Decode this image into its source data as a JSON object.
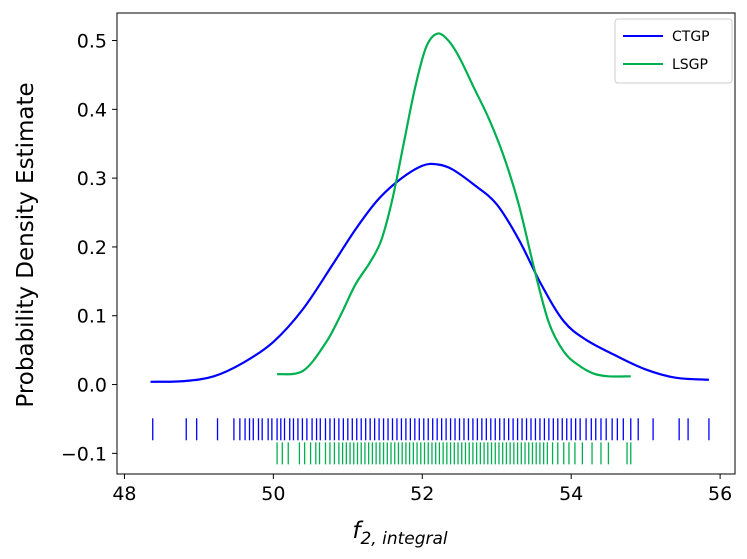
{
  "chart_data": {
    "type": "line",
    "title": "",
    "xlabel": "f",
    "xlabel_sub": "2, integral",
    "ylabel": "Probability Density Estimate",
    "xlim": [
      47.9,
      56.2
    ],
    "ylim": [
      -0.13,
      0.54
    ],
    "xticks": [
      48,
      50,
      52,
      54,
      56
    ],
    "xtick_labels": [
      "48",
      "50",
      "52",
      "54",
      "56"
    ],
    "yticks": [
      -0.1,
      0.0,
      0.1,
      0.2,
      0.3,
      0.4,
      0.5
    ],
    "ytick_labels": [
      "−0.1",
      "0.0",
      "0.1",
      "0.2",
      "0.3",
      "0.4",
      "0.5"
    ],
    "grid": false,
    "legend_position": "top-right",
    "series": [
      {
        "name": "CTGP",
        "color": "#0000ff",
        "x": [
          48.35,
          48.8,
          49.2,
          49.6,
          50.0,
          50.4,
          50.8,
          51.1,
          51.4,
          51.7,
          52.0,
          52.2,
          52.4,
          52.7,
          53.0,
          53.3,
          53.6,
          53.9,
          54.2,
          54.6,
          55.0,
          55.4,
          55.85
        ],
        "values": [
          0.004,
          0.005,
          0.012,
          0.032,
          0.062,
          0.11,
          0.175,
          0.225,
          0.268,
          0.298,
          0.318,
          0.32,
          0.313,
          0.29,
          0.262,
          0.21,
          0.145,
          0.092,
          0.065,
          0.042,
          0.022,
          0.01,
          0.007
        ]
      },
      {
        "name": "LSGP",
        "color": "#00b050",
        "x": [
          50.05,
          50.4,
          50.7,
          50.9,
          51.1,
          51.3,
          51.45,
          51.6,
          51.75,
          51.9,
          52.05,
          52.2,
          52.35,
          52.5,
          52.7,
          52.9,
          53.1,
          53.3,
          53.5,
          53.7,
          53.9,
          54.1,
          54.3,
          54.5,
          54.8
        ],
        "values": [
          0.015,
          0.02,
          0.06,
          0.1,
          0.145,
          0.178,
          0.21,
          0.27,
          0.35,
          0.43,
          0.49,
          0.51,
          0.5,
          0.475,
          0.43,
          0.385,
          0.33,
          0.26,
          0.17,
          0.09,
          0.048,
          0.028,
          0.016,
          0.012,
          0.012
        ]
      }
    ],
    "rug": [
      {
        "name": "CTGP",
        "color": "#0000ff",
        "level": -0.065,
        "points": [
          48.38,
          48.83,
          48.97,
          49.25,
          49.47,
          49.55,
          49.62,
          49.68,
          49.73,
          49.8,
          49.85,
          49.93,
          49.98,
          50.05,
          50.1,
          50.15,
          50.22,
          50.27,
          50.33,
          50.39,
          50.45,
          50.52,
          50.58,
          50.63,
          50.7,
          50.76,
          50.82,
          50.88,
          50.94,
          51.0,
          51.06,
          51.12,
          51.18,
          51.24,
          51.3,
          51.36,
          51.42,
          51.48,
          51.54,
          51.6,
          51.66,
          51.72,
          51.78,
          51.84,
          51.9,
          51.96,
          52.02,
          52.08,
          52.14,
          52.2,
          52.26,
          52.32,
          52.38,
          52.44,
          52.5,
          52.56,
          52.62,
          52.68,
          52.74,
          52.8,
          52.86,
          52.92,
          52.98,
          53.04,
          53.1,
          53.16,
          53.22,
          53.28,
          53.34,
          53.4,
          53.46,
          53.52,
          53.58,
          53.64,
          53.7,
          53.76,
          53.82,
          53.88,
          53.94,
          54.0,
          54.06,
          54.12,
          54.2,
          54.27,
          54.33,
          54.4,
          54.47,
          54.55,
          54.62,
          54.7,
          54.8,
          54.9,
          55.1,
          55.45,
          55.57,
          55.85
        ]
      },
      {
        "name": "LSGP",
        "color": "#00b050",
        "level": -0.1,
        "points": [
          50.05,
          50.12,
          50.2,
          50.35,
          50.42,
          50.5,
          50.57,
          50.62,
          50.7,
          50.76,
          50.82,
          50.88,
          50.93,
          50.98,
          51.03,
          51.08,
          51.13,
          51.18,
          51.23,
          51.28,
          51.33,
          51.38,
          51.43,
          51.48,
          51.53,
          51.58,
          51.63,
          51.68,
          51.73,
          51.78,
          51.83,
          51.88,
          51.93,
          51.98,
          52.03,
          52.08,
          52.13,
          52.18,
          52.23,
          52.28,
          52.33,
          52.38,
          52.43,
          52.48,
          52.53,
          52.58,
          52.63,
          52.68,
          52.73,
          52.78,
          52.83,
          52.88,
          52.93,
          52.98,
          53.03,
          53.08,
          53.13,
          53.18,
          53.23,
          53.28,
          53.33,
          53.38,
          53.43,
          53.48,
          53.53,
          53.58,
          53.63,
          53.68,
          53.75,
          53.82,
          53.9,
          53.97,
          54.05,
          54.15,
          54.28,
          54.4,
          54.5,
          54.75,
          54.8
        ]
      }
    ]
  }
}
